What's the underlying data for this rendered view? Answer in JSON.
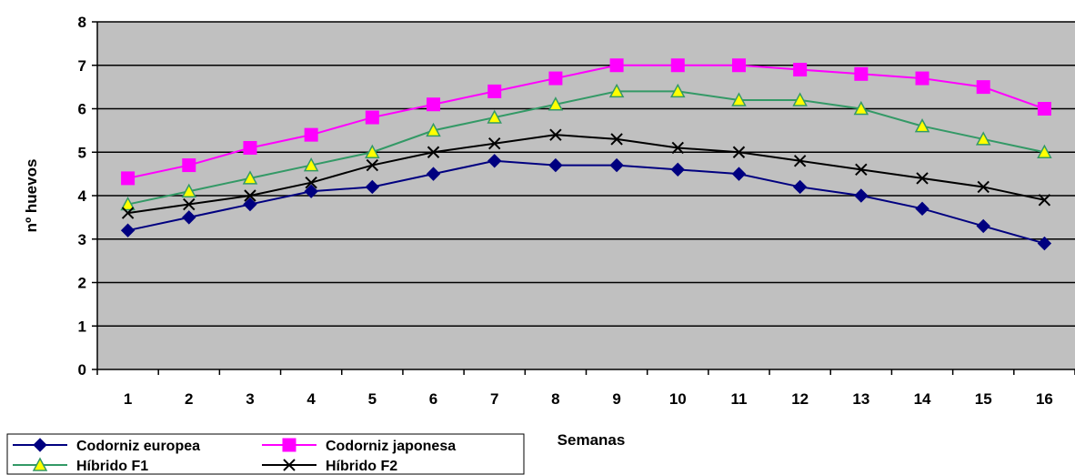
{
  "chart_data": {
    "type": "line",
    "title": "",
    "xlabel": "Semanas",
    "ylabel": "nº huevos",
    "x": [
      "1",
      "2",
      "3",
      "4",
      "5",
      "6",
      "7",
      "8",
      "9",
      "10",
      "11",
      "12",
      "13",
      "14",
      "15",
      "16"
    ],
    "ylim": [
      0,
      8
    ],
    "yticks": [
      "0",
      "1",
      "2",
      "3",
      "4",
      "5",
      "6",
      "7",
      "8"
    ],
    "grid": true,
    "plot_background": "#c0c0c0",
    "legend_position": "bottom-left",
    "series": [
      {
        "name": "Codorniz europea",
        "color": "#000080",
        "marker": "diamond",
        "values": [
          3.2,
          3.5,
          3.8,
          4.1,
          4.2,
          4.5,
          4.8,
          4.7,
          4.7,
          4.6,
          4.5,
          4.2,
          4.0,
          3.7,
          3.3,
          2.9
        ]
      },
      {
        "name": "Codorniz japonesa",
        "color": "#ff00ff",
        "marker": "square",
        "values": [
          4.4,
          4.7,
          5.1,
          5.4,
          5.8,
          6.1,
          6.4,
          6.7,
          7.0,
          7.0,
          7.0,
          6.9,
          6.8,
          6.7,
          6.5,
          6.0
        ]
      },
      {
        "name": "Híbrido F1",
        "color": "#339966",
        "marker": "triangle",
        "marker_fill": "#ffff00",
        "values": [
          3.8,
          4.1,
          4.4,
          4.7,
          5.0,
          5.5,
          5.8,
          6.1,
          6.4,
          6.4,
          6.2,
          6.2,
          6.0,
          5.6,
          5.3,
          5.0
        ]
      },
      {
        "name": "Híbrido F2",
        "color": "#000000",
        "marker": "x",
        "values": [
          3.6,
          3.8,
          4.0,
          4.3,
          4.7,
          5.0,
          5.2,
          5.4,
          5.3,
          5.1,
          5.0,
          4.8,
          4.6,
          4.4,
          4.2,
          3.9
        ]
      }
    ]
  }
}
